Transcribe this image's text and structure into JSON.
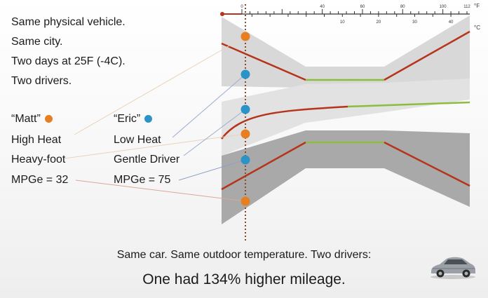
{
  "intro": [
    "Same physical vehicle.",
    "Same city.",
    "Two days at 25F (-4C).",
    "Two drivers."
  ],
  "drivers": [
    {
      "name": "“Matt”",
      "color": "#e67e22",
      "heat": "High Heat",
      "style": "Heavy-foot",
      "mpge": "MPGe = 32"
    },
    {
      "name": "“Eric”",
      "color": "#2b93c6",
      "heat": "Low Heat",
      "style": "Gentle Driver",
      "mpge": "MPGe = 75"
    }
  ],
  "thermometer": {
    "unit_f": "°F",
    "unit_c": "°C",
    "f_ticks": [
      {
        "t": "0",
        "v": 0
      },
      {
        "t": "40",
        "v": 40
      },
      {
        "t": "60",
        "v": 60
      },
      {
        "t": "80",
        "v": 80
      },
      {
        "t": "100",
        "v": 100
      },
      {
        "t": "112",
        "v": 112
      }
    ],
    "c_ticks": [
      {
        "t": "10",
        "v": 10
      },
      {
        "t": "20",
        "v": 20
      },
      {
        "t": "30",
        "v": 30
      },
      {
        "t": "40",
        "v": 40
      }
    ],
    "marker_temp_f": 25
  },
  "footer": {
    "line1": "Same car. Same outdoor temperature. Two drivers:",
    "line2": "One had 134% higher mileage."
  },
  "colors": {
    "trend_red": "#b5341b",
    "trend_green": "#8cbd3f",
    "marker_line": "#8a4a2a"
  }
}
